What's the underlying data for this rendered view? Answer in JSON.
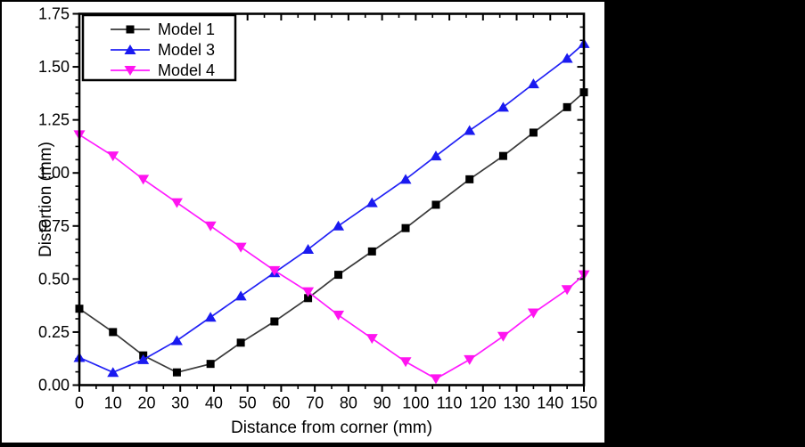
{
  "chart_data": {
    "type": "line",
    "title": "",
    "xlabel": "Distance from corner (mm)",
    "ylabel": "Distortion (mm)",
    "xlim": [
      0,
      150
    ],
    "ylim": [
      0,
      1.75
    ],
    "grid": false,
    "legend_position": "top-left",
    "x_major_tick_step": 10,
    "x_minor_tick_step": 5,
    "y_major_tick_step": 0.25,
    "y_minor_divisions": 4,
    "x_tick_labels": [
      "0",
      "10",
      "20",
      "30",
      "40",
      "50",
      "60",
      "70",
      "80",
      "90",
      "100",
      "110",
      "120",
      "130",
      "140",
      "150"
    ],
    "y_tick_labels": [
      "0.00",
      "0.25",
      "0.50",
      "0.75",
      "1.00",
      "1.25",
      "1.50",
      "1.75"
    ],
    "x": [
      0,
      10,
      19,
      29,
      39,
      48,
      58,
      68,
      77,
      87,
      97,
      106,
      116,
      126,
      135,
      145,
      150
    ],
    "series": [
      {
        "name": "Model 1",
        "marker": "square",
        "line_color": "#3a3a3a",
        "marker_color": "#000000",
        "values": [
          0.36,
          0.25,
          0.14,
          0.06,
          0.1,
          0.2,
          0.3,
          0.41,
          0.52,
          0.63,
          0.74,
          0.85,
          0.97,
          1.08,
          1.19,
          1.31,
          1.38
        ]
      },
      {
        "name": "Model 3",
        "marker": "triangle-up",
        "line_color": "#2121f5",
        "marker_color": "#1a1af0",
        "values": [
          0.13,
          0.06,
          0.12,
          0.21,
          0.32,
          0.42,
          0.53,
          0.64,
          0.75,
          0.86,
          0.97,
          1.08,
          1.2,
          1.31,
          1.42,
          1.54,
          1.61
        ]
      },
      {
        "name": "Model 4",
        "marker": "triangle-down",
        "line_color": "#ff1aff",
        "marker_color": "#ff14f0",
        "values": [
          1.18,
          1.08,
          0.97,
          0.86,
          0.75,
          0.65,
          0.54,
          0.44,
          0.33,
          0.22,
          0.11,
          0.03,
          0.12,
          0.23,
          0.34,
          0.45,
          0.52
        ]
      }
    ]
  },
  "colors": {
    "page_background": "#000000",
    "canvas_background": "#ffffff",
    "frame": "#000000"
  }
}
